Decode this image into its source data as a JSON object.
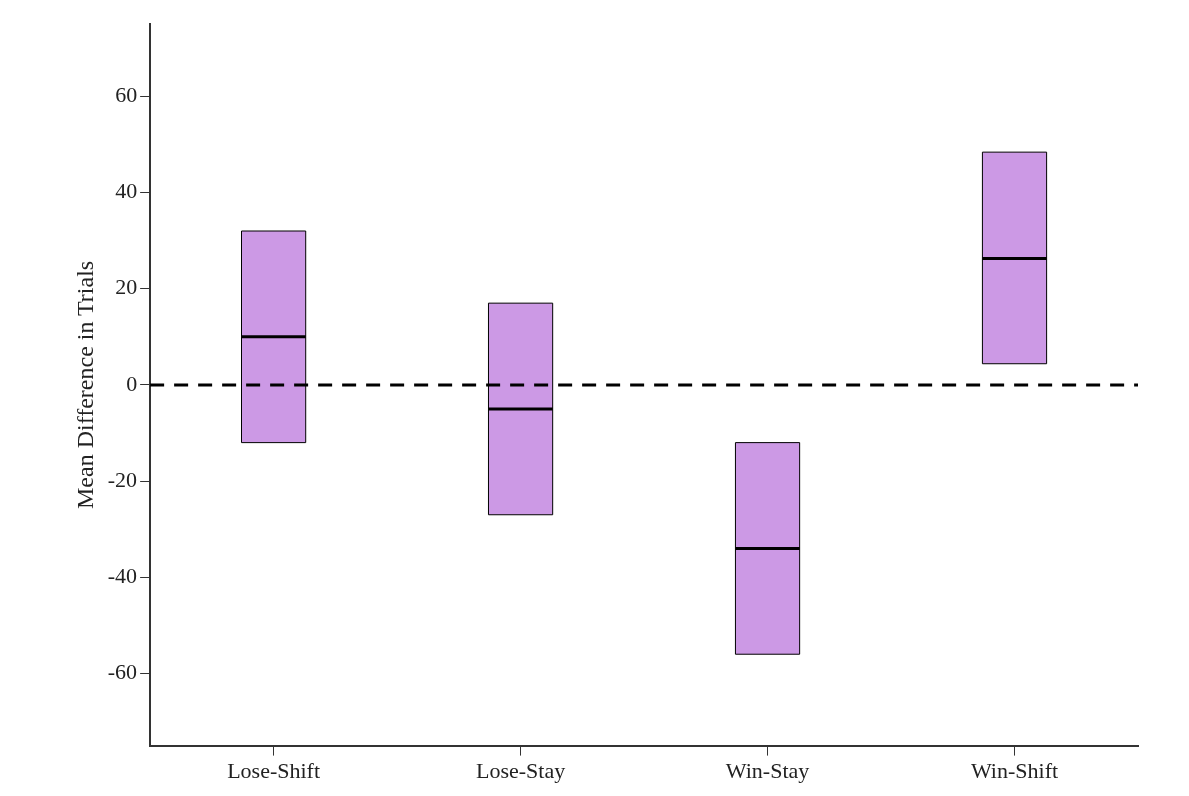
{
  "chart_data": {
    "type": "box",
    "ylabel": "Mean Difference in Trials",
    "categories": [
      "Lose-Shift",
      "Lose-Stay",
      "Win-Stay",
      "Win-Shift"
    ],
    "color": "#cc99e5",
    "boxes": [
      {
        "low": -12,
        "q1": -12,
        "median": 10,
        "q3": 32,
        "high": 32
      },
      {
        "low": -27,
        "q1": -27,
        "median": -5,
        "q3": 17,
        "high": 17
      },
      {
        "low": -56,
        "q1": -56,
        "median": -34,
        "q3": -12,
        "high": -12
      },
      {
        "low": 4.4,
        "q1": 4.4,
        "median": 26.3,
        "q3": 48.4,
        "high": 48.4
      }
    ],
    "ylim": [
      -75,
      75
    ],
    "yticks": [
      -60,
      -40,
      -20,
      0,
      20,
      40,
      60
    ],
    "ref_lines": [
      {
        "axis": "y",
        "value": 0,
        "color": "#000000",
        "line_style": "dashed"
      }
    ],
    "grid": false,
    "legend": false
  }
}
